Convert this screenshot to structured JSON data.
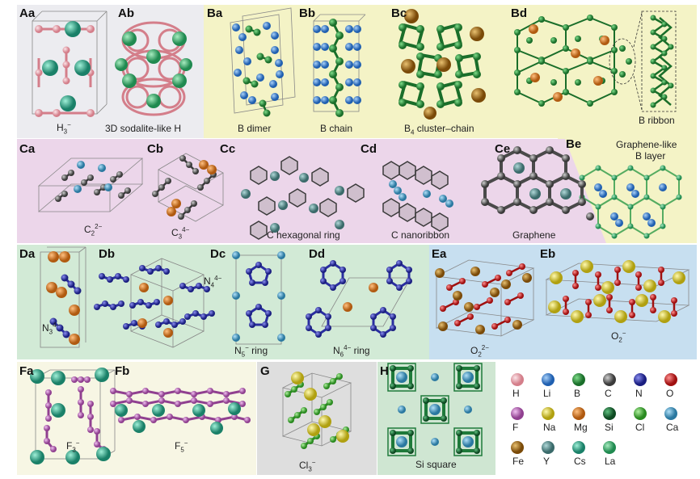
{
  "panels": {
    "Aa": {
      "label": "Aa",
      "caption": "H",
      "sub": "3",
      "sup": "−"
    },
    "Ab": {
      "label": "Ab",
      "caption": "3D sodalite-like H"
    },
    "Ba": {
      "label": "Ba",
      "caption": "B dimer"
    },
    "Bb": {
      "label": "Bb",
      "caption": "B chain"
    },
    "Bc": {
      "label": "Bc",
      "caption_pre": "B",
      "caption_sub": "4",
      "caption_post": " cluster–chain"
    },
    "Bd": {
      "label": "Bd",
      "caption": "B ribbon"
    },
    "Be": {
      "label": "Be",
      "caption_line1": "Graphene-like",
      "caption_line2": "B layer"
    },
    "Ca": {
      "label": "Ca",
      "caption": "C",
      "sub": "2",
      "sup": "2−"
    },
    "Cb": {
      "label": "Cb",
      "caption": "C",
      "sub": "3",
      "sup": "4−"
    },
    "Cc": {
      "label": "Cc",
      "caption": "C hexagonal ring"
    },
    "Cd": {
      "label": "Cd",
      "caption": "C nanoribbon"
    },
    "Ce": {
      "label": "Ce",
      "caption": "Graphene"
    },
    "Da": {
      "label": "Da",
      "caption": "N",
      "sub": "3",
      "sup": "4−"
    },
    "Db": {
      "label": "Db",
      "caption": "N",
      "sub": "4",
      "sup": "4−"
    },
    "Dc": {
      "label": "Dc",
      "caption": "N",
      "sub": "5",
      "sup": "−",
      "post": " ring"
    },
    "Dd": {
      "label": "Dd",
      "caption": "N",
      "sub": "6",
      "sup": "4−",
      "post": " ring"
    },
    "Ea": {
      "label": "Ea",
      "caption": "O",
      "sub": "2",
      "sup": "2−"
    },
    "Eb": {
      "label": "Eb",
      "caption": "O",
      "sub": "2",
      "sup": "−"
    },
    "Fa": {
      "label": "Fa",
      "caption": "F",
      "sub": "3",
      "sup": "−"
    },
    "Fb": {
      "label": "Fb",
      "caption": "F",
      "sub": "5",
      "sup": "−"
    },
    "G": {
      "label": "G",
      "caption": "Cl",
      "sub": "3",
      "sup": "−"
    },
    "H": {
      "label": "H",
      "caption": "Si square"
    }
  },
  "legend": [
    {
      "symbol": "H",
      "color": "#e8a0a8"
    },
    {
      "symbol": "Li",
      "color": "#2a7fd0"
    },
    {
      "symbol": "B",
      "color": "#2a9a3a"
    },
    {
      "symbol": "C",
      "color": "#6a6a6a"
    },
    {
      "symbol": "N",
      "color": "#2a2ea0"
    },
    {
      "symbol": "O",
      "color": "#e02020"
    },
    {
      "symbol": "F",
      "color": "#c070c0"
    },
    {
      "symbol": "Na",
      "color": "#e0d030"
    },
    {
      "symbol": "Mg",
      "color": "#e07820"
    },
    {
      "symbol": "Si",
      "color": "#1e7a3a"
    },
    {
      "symbol": "Cl",
      "color": "#50c040"
    },
    {
      "symbol": "Ca",
      "color": "#4aa0c8"
    },
    {
      "symbol": "Fe",
      "color": "#b07010"
    },
    {
      "symbol": "Y",
      "color": "#5a9a9a"
    },
    {
      "symbol": "Cs",
      "color": "#30b090"
    },
    {
      "symbol": "La",
      "color": "#40b070"
    }
  ],
  "colors": {
    "bgA": "#ececf0",
    "bgB": "#f4f3c6",
    "bgC": "#ecd6ea",
    "bgD": "#d2ead6",
    "bgE": "#c7dff0",
    "bgF": "#f7f6e4",
    "bgG": "#dedede",
    "bgH": "#cfe6d2"
  }
}
